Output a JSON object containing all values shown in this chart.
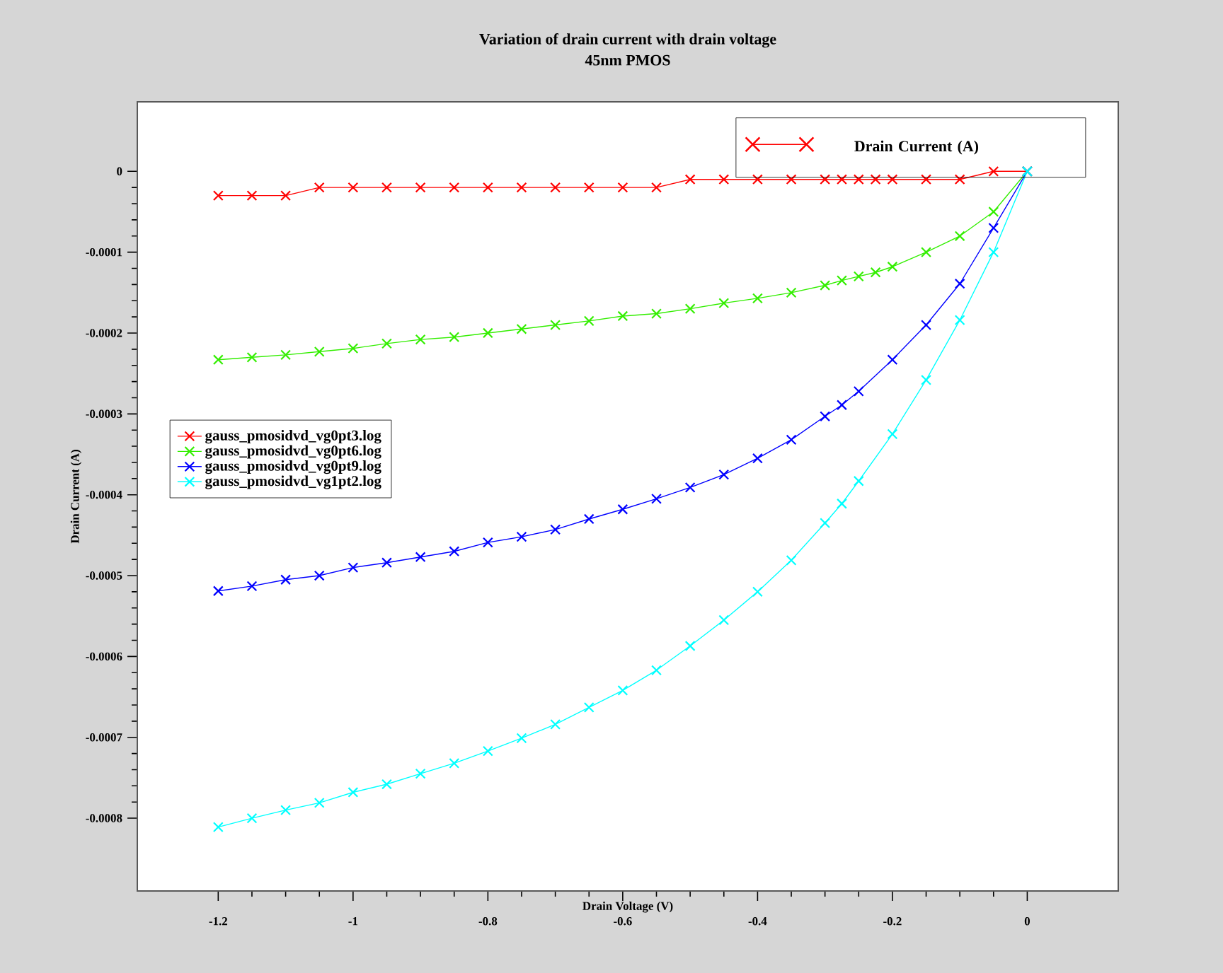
{
  "chart_data": {
    "type": "line",
    "title": "Variation of drain current with drain voltage",
    "subtitle": "45nm PMOS",
    "xlabel": "Drain Voltage (V)",
    "ylabel": "Drain Current (A)",
    "annotations": [
      "Drain Current (A)"
    ],
    "xlim": [
      -1.32,
      0.135
    ],
    "ylim": [
      -0.00089,
      8.6e-05
    ],
    "xticks": [
      -1.2,
      -1,
      -0.8,
      -0.6,
      -0.4,
      -0.2,
      0
    ],
    "yticks": [
      -0.0008,
      -0.0007,
      -0.0006,
      -0.0005,
      -0.0004,
      -0.0003,
      -0.0002,
      -0.0001,
      0
    ],
    "legend": "left",
    "marker": "cross",
    "line_style": "solid",
    "grid": false,
    "series": [
      {
        "name": "gauss_pmosidvd_vg0pt3.log",
        "color": "#ff0000",
        "x": [
          -1.2,
          -1.15,
          -1.1,
          -1.05,
          -1.0,
          -0.95,
          -0.9,
          -0.85,
          -0.8,
          -0.75,
          -0.7,
          -0.65,
          -0.6,
          -0.55,
          -0.5,
          -0.45,
          -0.4,
          -0.35,
          -0.3,
          -0.275,
          -0.25,
          -0.225,
          -0.2,
          -0.15,
          -0.1,
          -0.05,
          0
        ],
        "values": [
          -3e-05,
          -3e-05,
          -3e-05,
          -2e-05,
          -2e-05,
          -2e-05,
          -2e-05,
          -2e-05,
          -2e-05,
          -2e-05,
          -2e-05,
          -2e-05,
          -2e-05,
          -2e-05,
          -1e-05,
          -1e-05,
          -1e-05,
          -1e-05,
          -1e-05,
          -1e-05,
          -1e-05,
          -1e-05,
          -1e-05,
          -1e-05,
          -1e-05,
          0,
          0
        ]
      },
      {
        "name": "gauss_pmosidvd_vg0pt6.log",
        "color": "#33ee00",
        "x": [
          -1.2,
          -1.15,
          -1.1,
          -1.05,
          -1.0,
          -0.95,
          -0.9,
          -0.85,
          -0.8,
          -0.75,
          -0.7,
          -0.65,
          -0.6,
          -0.55,
          -0.5,
          -0.45,
          -0.4,
          -0.35,
          -0.3,
          -0.275,
          -0.25,
          -0.225,
          -0.2,
          -0.15,
          -0.1,
          -0.05,
          0
        ],
        "values": [
          -0.000233,
          -0.00023,
          -0.000227,
          -0.000223,
          -0.000219,
          -0.000213,
          -0.000208,
          -0.000205,
          -0.0002,
          -0.000195,
          -0.00019,
          -0.000185,
          -0.000179,
          -0.000176,
          -0.00017,
          -0.000163,
          -0.000157,
          -0.00015,
          -0.000141,
          -0.000135,
          -0.00013,
          -0.000125,
          -0.000118,
          -0.0001,
          -8e-05,
          -5e-05,
          0
        ]
      },
      {
        "name": "gauss_pmosidvd_vg0pt9.log",
        "color": "#0000ff",
        "x": [
          -1.2,
          -1.15,
          -1.1,
          -1.05,
          -1.0,
          -0.95,
          -0.9,
          -0.85,
          -0.8,
          -0.75,
          -0.7,
          -0.65,
          -0.6,
          -0.55,
          -0.5,
          -0.45,
          -0.4,
          -0.35,
          -0.3,
          -0.275,
          -0.25,
          -0.2,
          -0.15,
          -0.1,
          -0.05,
          0
        ],
        "values": [
          -0.000519,
          -0.000513,
          -0.000505,
          -0.0005,
          -0.00049,
          -0.000484,
          -0.000477,
          -0.00047,
          -0.000459,
          -0.000452,
          -0.000443,
          -0.00043,
          -0.000418,
          -0.000405,
          -0.000391,
          -0.000375,
          -0.000355,
          -0.000332,
          -0.000303,
          -0.000289,
          -0.000272,
          -0.000233,
          -0.00019,
          -0.000139,
          -7e-05,
          0
        ]
      },
      {
        "name": "gauss_pmosidvd_vg1pt2.log",
        "color": "#00ffff",
        "x": [
          -1.2,
          -1.15,
          -1.1,
          -1.05,
          -1.0,
          -0.95,
          -0.9,
          -0.85,
          -0.8,
          -0.75,
          -0.7,
          -0.65,
          -0.6,
          -0.55,
          -0.5,
          -0.45,
          -0.4,
          -0.35,
          -0.3,
          -0.275,
          -0.25,
          -0.2,
          -0.15,
          -0.1,
          -0.05,
          0
        ],
        "values": [
          -0.000811,
          -0.0008,
          -0.00079,
          -0.000781,
          -0.000768,
          -0.000758,
          -0.000745,
          -0.000732,
          -0.000717,
          -0.000701,
          -0.000684,
          -0.000663,
          -0.000642,
          -0.000617,
          -0.000587,
          -0.000555,
          -0.00052,
          -0.000481,
          -0.000435,
          -0.000411,
          -0.000383,
          -0.000325,
          -0.000258,
          -0.000184,
          -0.0001,
          0
        ]
      }
    ]
  }
}
